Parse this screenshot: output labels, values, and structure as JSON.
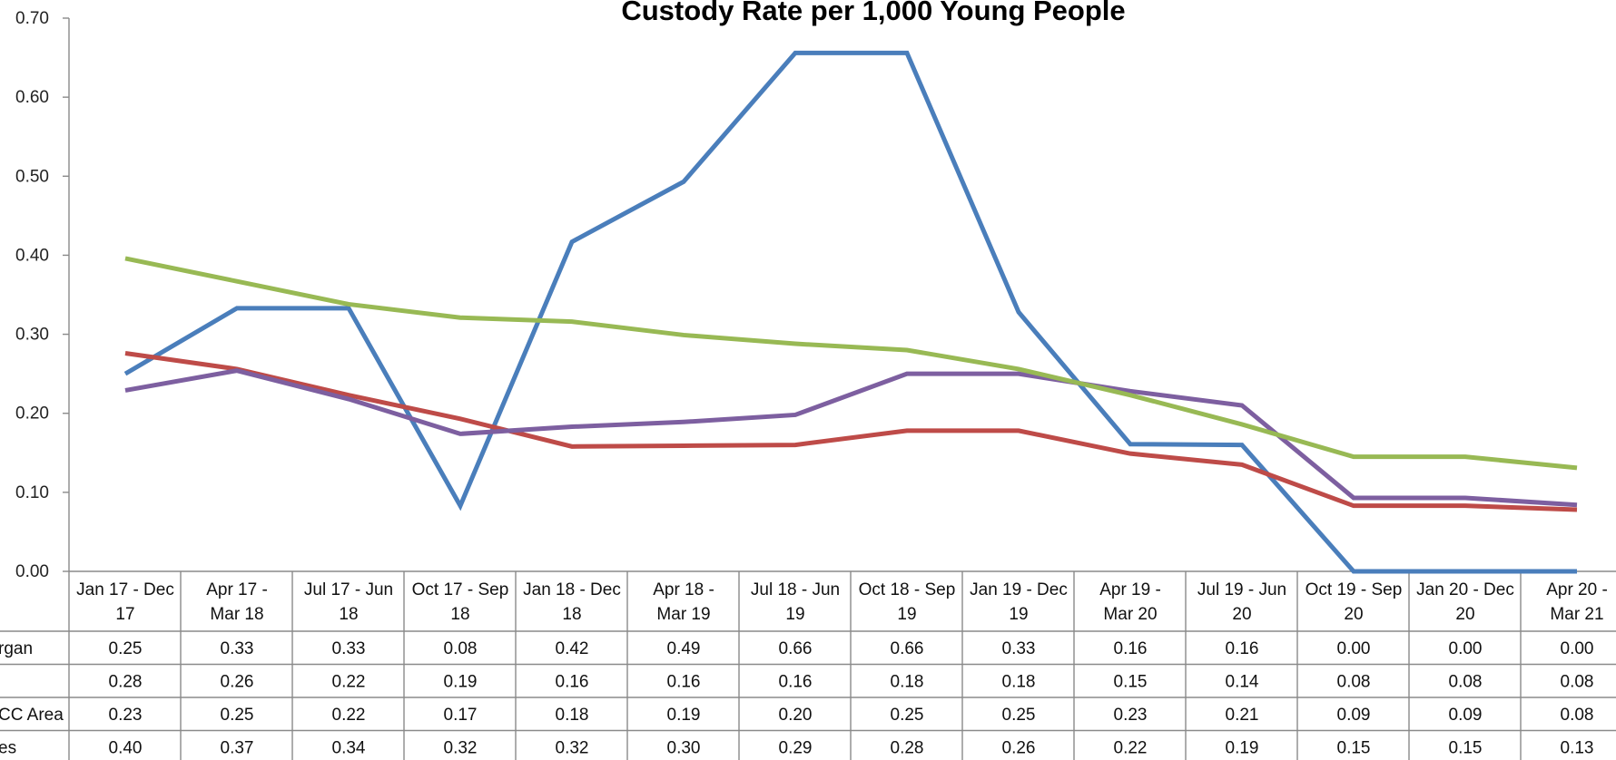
{
  "chart_data": {
    "type": "line",
    "title": "Custody Rate per 1,000 Young People",
    "xlabel": "",
    "ylabel": "",
    "ylim": [
      0,
      0.7
    ],
    "y_ticks": [
      "0.00",
      "0.10",
      "0.20",
      "0.30",
      "0.40",
      "0.50",
      "0.60",
      "0.70"
    ],
    "grid": false,
    "legend": "data table below chart",
    "categories": [
      [
        "Jan 17 - Dec",
        "17"
      ],
      [
        "Apr 17 -",
        "Mar 18"
      ],
      [
        "Jul 17 - Jun",
        "18"
      ],
      [
        "Oct 17 - Sep",
        "18"
      ],
      [
        "Jan 18 - Dec",
        "18"
      ],
      [
        "Apr 18 -",
        "Mar 19"
      ],
      [
        "Jul 18 - Jun",
        "19"
      ],
      [
        "Oct 18 - Sep",
        "19"
      ],
      [
        "Jan 19 - Dec",
        "19"
      ],
      [
        "Apr 19 -",
        "Mar 20"
      ],
      [
        "Jul 19 - Jun",
        "20"
      ],
      [
        "Oct 19 - Sep",
        "20"
      ],
      [
        "Jan 20 - Dec",
        "20"
      ],
      [
        "Apr 20 -",
        "Mar 21"
      ]
    ],
    "series": [
      {
        "row_label": "rgan",
        "color": "#4a7ebb",
        "values": [
          0.25,
          0.333,
          0.333,
          0.083,
          0.417,
          0.493,
          0.656,
          0.656,
          0.328,
          0.161,
          0.16,
          0.0,
          0.0,
          0.0
        ],
        "labels": [
          "0.25",
          "0.33",
          "0.33",
          "0.08",
          "0.42",
          "0.49",
          "0.66",
          "0.66",
          "0.33",
          "0.16",
          "0.16",
          "0.00",
          "0.00",
          "0.00"
        ]
      },
      {
        "row_label": "",
        "color": "#be4b48",
        "values": [
          0.276,
          0.256,
          0.223,
          0.193,
          0.158,
          0.159,
          0.16,
          0.178,
          0.178,
          0.149,
          0.135,
          0.083,
          0.083,
          0.078
        ],
        "labels": [
          "0.28",
          "0.26",
          "0.22",
          "0.19",
          "0.16",
          "0.16",
          "0.16",
          "0.18",
          "0.18",
          "0.15",
          "0.14",
          "0.08",
          "0.08",
          "0.08"
        ]
      },
      {
        "row_label": "CC Area",
        "color": "#7d5fa0",
        "values": [
          0.229,
          0.254,
          0.218,
          0.174,
          0.183,
          0.189,
          0.198,
          0.25,
          0.25,
          0.228,
          0.21,
          0.093,
          0.093,
          0.084
        ],
        "labels": [
          "0.23",
          "0.25",
          "0.22",
          "0.17",
          "0.18",
          "0.19",
          "0.20",
          "0.25",
          "0.25",
          "0.23",
          "0.21",
          "0.09",
          "0.09",
          "0.08"
        ]
      },
      {
        "row_label": "es",
        "color": "#98b954",
        "values": [
          0.396,
          0.367,
          0.338,
          0.321,
          0.316,
          0.299,
          0.288,
          0.28,
          0.256,
          0.223,
          0.186,
          0.145,
          0.145,
          0.131
        ],
        "labels": [
          "0.40",
          "0.37",
          "0.34",
          "0.32",
          "0.32",
          "0.30",
          "0.29",
          "0.28",
          "0.26",
          "0.22",
          "0.19",
          "0.15",
          "0.15",
          "0.13"
        ]
      }
    ]
  }
}
